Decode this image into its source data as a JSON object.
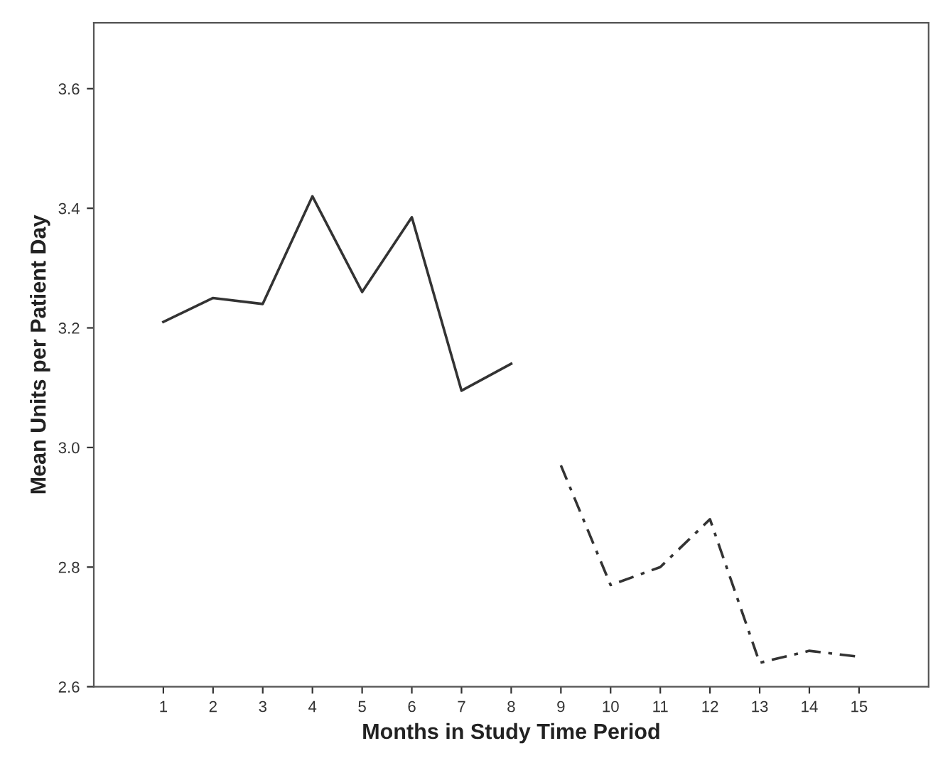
{
  "chart_data": {
    "type": "line",
    "xlabel": "Months in Study Time Period",
    "ylabel": "Mean Units per Patient Day",
    "xlim": [
      -0.4,
      16.4
    ],
    "xticks": [
      1,
      2,
      3,
      4,
      5,
      6,
      7,
      8,
      9,
      10,
      11,
      12,
      13,
      14,
      15
    ],
    "ylim": [
      2.6,
      3.71
    ],
    "yticks": [
      2.6,
      2.8,
      {
        "value": 3,
        "label": "3.0"
      },
      3.2,
      3.4,
      3.6
    ],
    "grid": false,
    "legend": false,
    "marker": "none",
    "series": [
      {
        "color": "#333333",
        "line_style": "solid",
        "x": [
          1,
          2,
          3,
          4,
          5,
          6,
          7,
          8
        ],
        "values": [
          3.21,
          3.25,
          3.24,
          3.42,
          3.26,
          3.385,
          3.095,
          3.14
        ]
      },
      {
        "color": "#333333",
        "line_style": "dashdot",
        "x": [
          9,
          10,
          11,
          12,
          13,
          14,
          15
        ],
        "values": [
          2.97,
          2.77,
          2.8,
          2.88,
          2.64,
          2.66,
          2.65
        ]
      }
    ]
  }
}
